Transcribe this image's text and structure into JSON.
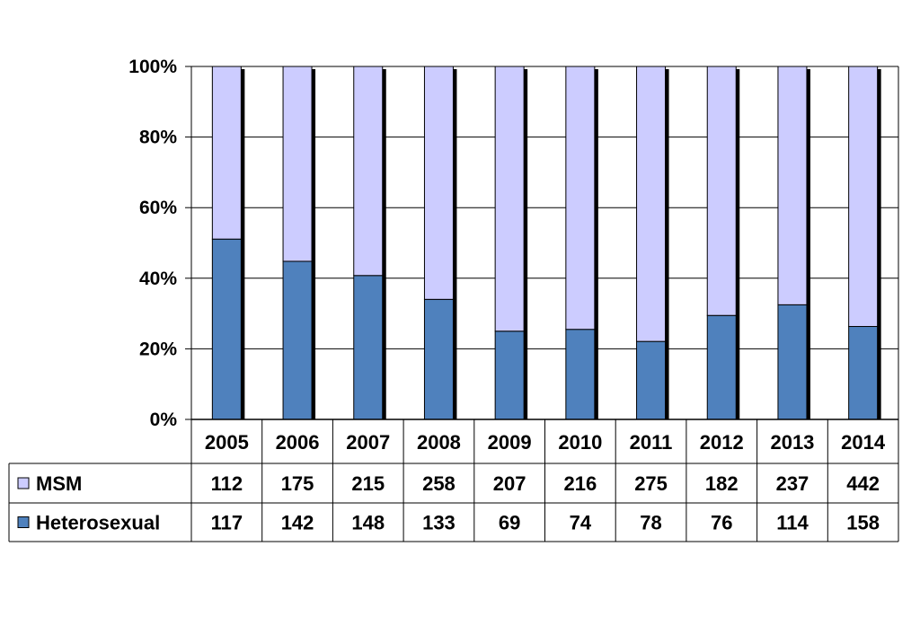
{
  "chart_data": {
    "type": "bar",
    "stacked": "percent",
    "categories": [
      "2005",
      "2006",
      "2007",
      "2008",
      "2009",
      "2010",
      "2011",
      "2012",
      "2013",
      "2014"
    ],
    "series": [
      {
        "name": "Heterosexual",
        "values": [
          117,
          142,
          148,
          133,
          69,
          74,
          78,
          76,
          114,
          158
        ],
        "color": "#4f81bd"
      },
      {
        "name": "MSM",
        "values": [
          112,
          175,
          215,
          258,
          207,
          216,
          275,
          182,
          237,
          442
        ],
        "color": "#ccccff"
      }
    ],
    "y_ticks": [
      "0%",
      "20%",
      "40%",
      "60%",
      "80%",
      "100%"
    ],
    "ylim": [
      0,
      100
    ],
    "grid": true,
    "legend": "data-table",
    "title": "",
    "xlabel": "",
    "ylabel": ""
  }
}
